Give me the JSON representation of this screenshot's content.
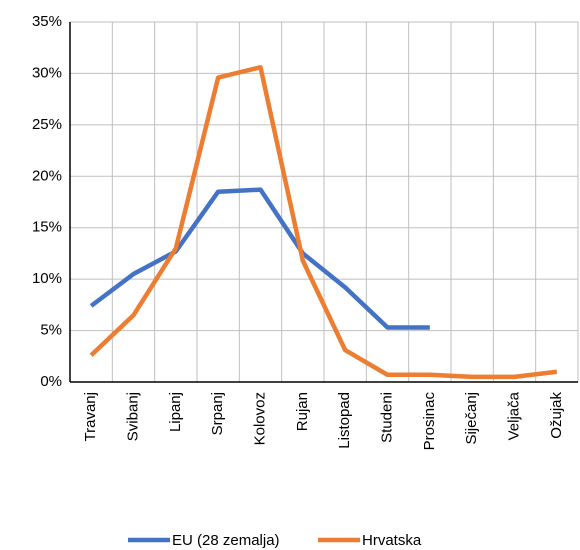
{
  "chart_data": {
    "type": "line",
    "categories": [
      "Travanj",
      "Svibanj",
      "Lipanj",
      "Srpanj",
      "Kolovoz",
      "Rujan",
      "Listopad",
      "Studeni",
      "Prosinac",
      "Siječanj",
      "Veljača",
      "Ožujak"
    ],
    "series": [
      {
        "name": "EU (28 zemalja)",
        "color": "#4472c4",
        "values": [
          7.4,
          10.5,
          12.7,
          18.5,
          18.7,
          12.5,
          9.2,
          5.3,
          5.3,
          null,
          null,
          null
        ]
      },
      {
        "name": "Hrvatska",
        "color": "#ed7d31",
        "values": [
          2.6,
          6.5,
          13.0,
          29.6,
          30.6,
          11.8,
          3.1,
          0.7,
          0.7,
          0.5,
          0.5,
          1.0
        ]
      }
    ],
    "ylim": [
      0,
      35
    ],
    "yticks": [
      {
        "value": 0,
        "label": "0%"
      },
      {
        "value": 5,
        "label": "5%"
      },
      {
        "value": 10,
        "label": "10%"
      },
      {
        "value": 15,
        "label": "15%"
      },
      {
        "value": 20,
        "label": "20%"
      },
      {
        "value": 25,
        "label": "25%"
      },
      {
        "value": 30,
        "label": "30%"
      },
      {
        "value": 35,
        "label": "35%"
      }
    ],
    "grid": true,
    "legend": "bottom"
  }
}
